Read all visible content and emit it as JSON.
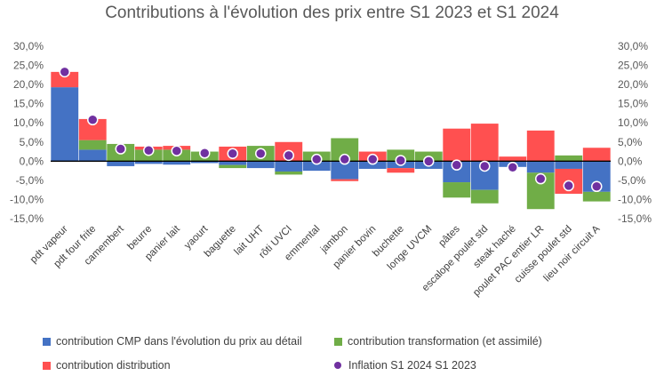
{
  "chart_data": {
    "type": "bar",
    "stacked": true,
    "title": "Contributions à l'évolution des prix entre S1 2023 et S1 2024",
    "ylim": [
      -15,
      30
    ],
    "yticks": [
      "30,0%",
      "25,0%",
      "20,0%",
      "15,0%",
      "10,0%",
      "5,0%",
      "0,0%",
      "-5,0%",
      "-10,0%",
      "-15,0%"
    ],
    "ytick_values": [
      30,
      25,
      20,
      15,
      10,
      5,
      0,
      -5,
      -10,
      -15
    ],
    "categories": [
      "pdt vapeur",
      "pdt four frite",
      "camembert",
      "beurre",
      "panier lait",
      "yaourt",
      "baguette",
      "lait UHT",
      "rôti UVCI",
      "emmental",
      "jambon",
      "panier bovin",
      "buchette",
      "longe UVCM",
      "pâtes",
      "escalope poulet std",
      "steak haché",
      "poulet PAC entier LR",
      "cuisse poulet std",
      "lieu noir circuit A"
    ],
    "series": [
      {
        "name": "contribution CMP dans l'évolution du prix au détail",
        "color": "#4472C4",
        "values": [
          19.3,
          3.0,
          -1.3,
          -0.7,
          -0.9,
          -0.5,
          -1.0,
          -1.8,
          -2.7,
          -2.5,
          -4.7,
          -2.0,
          -1.8,
          -2.0,
          -5.5,
          -7.5,
          -1.5,
          -3.0,
          -2.0,
          -8.0
        ]
      },
      {
        "name": "contribution transformation (et assimilé)",
        "color": "#70AD47",
        "values": [
          0.0,
          2.5,
          4.5,
          3.0,
          3.0,
          2.5,
          -0.8,
          4.0,
          -0.8,
          2.5,
          6.0,
          0.0,
          3.0,
          2.5,
          -4.0,
          -3.5,
          0.0,
          -9.5,
          1.5,
          -2.5
        ]
      },
      {
        "name": "contribution distribution",
        "color": "#FF5050",
        "values": [
          4.0,
          5.5,
          0.0,
          0.8,
          1.0,
          0.0,
          3.8,
          0.0,
          5.0,
          0.0,
          -0.5,
          2.5,
          -1.2,
          0.0,
          8.5,
          9.8,
          1.2,
          8.0,
          -6.5,
          3.5
        ]
      }
    ],
    "inflation": {
      "name": "Inflation S1 2024 S1 2023",
      "color": "#7030A0",
      "values": [
        23.3,
        10.8,
        3.2,
        2.8,
        2.7,
        2.1,
        2.0,
        2.0,
        1.5,
        0.5,
        0.5,
        0.5,
        0.2,
        0.0,
        -1.0,
        -1.3,
        -1.6,
        -4.6,
        -6.4,
        -6.6
      ]
    }
  },
  "legend": {
    "cmp": "contribution CMP dans l'évolution du prix au détail",
    "transformation": "contribution transformation (et assimilé)",
    "distribution": "contribution distribution",
    "inflation": "Inflation S1 2024 S1 2023"
  }
}
